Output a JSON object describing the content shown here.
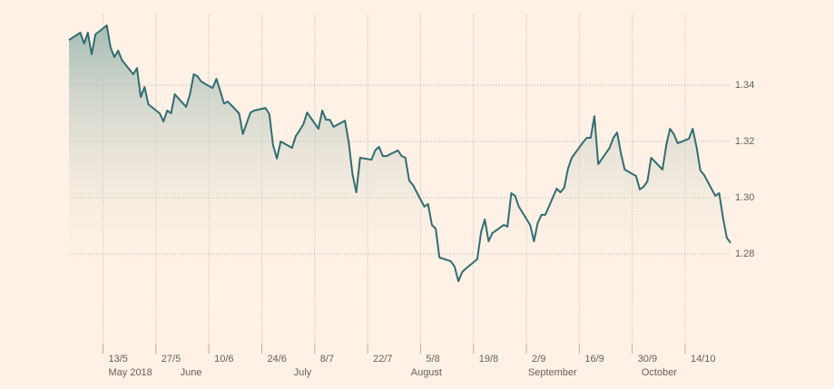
{
  "chart_data": {
    "type": "line",
    "x": [
      "2018-05-04",
      "2018-05-07",
      "2018-05-08",
      "2018-05-09",
      "2018-05-10",
      "2018-05-11",
      "2018-05-14",
      "2018-05-15",
      "2018-05-16",
      "2018-05-17",
      "2018-05-18",
      "2018-05-21",
      "2018-05-22",
      "2018-05-23",
      "2018-05-24",
      "2018-05-25",
      "2018-05-28",
      "2018-05-29",
      "2018-05-30",
      "2018-05-31",
      "2018-06-01",
      "2018-06-04",
      "2018-06-05",
      "2018-06-06",
      "2018-06-07",
      "2018-06-08",
      "2018-06-11",
      "2018-06-12",
      "2018-06-13",
      "2018-06-14",
      "2018-06-15",
      "2018-06-18",
      "2018-06-19",
      "2018-06-20",
      "2018-06-21",
      "2018-06-22",
      "2018-06-25",
      "2018-06-26",
      "2018-06-27",
      "2018-06-28",
      "2018-06-29",
      "2018-07-02",
      "2018-07-03",
      "2018-07-04",
      "2018-07-05",
      "2018-07-06",
      "2018-07-09",
      "2018-07-10",
      "2018-07-11",
      "2018-07-12",
      "2018-07-13",
      "2018-07-16",
      "2018-07-17",
      "2018-07-18",
      "2018-07-19",
      "2018-07-20",
      "2018-07-23",
      "2018-07-24",
      "2018-07-25",
      "2018-07-26",
      "2018-07-27",
      "2018-07-30",
      "2018-07-31",
      "2018-08-01",
      "2018-08-02",
      "2018-08-03",
      "2018-08-06",
      "2018-08-07",
      "2018-08-08",
      "2018-08-09",
      "2018-08-10",
      "2018-08-13",
      "2018-08-14",
      "2018-08-15",
      "2018-08-16",
      "2018-08-17",
      "2018-08-20",
      "2018-08-21",
      "2018-08-22",
      "2018-08-23",
      "2018-08-24",
      "2018-08-27",
      "2018-08-28",
      "2018-08-29",
      "2018-08-30",
      "2018-08-31",
      "2018-09-03",
      "2018-09-04",
      "2018-09-05",
      "2018-09-06",
      "2018-09-07",
      "2018-09-10",
      "2018-09-11",
      "2018-09-12",
      "2018-09-13",
      "2018-09-14",
      "2018-09-17",
      "2018-09-18",
      "2018-09-19",
      "2018-09-20",
      "2018-09-21",
      "2018-09-24",
      "2018-09-25",
      "2018-09-26",
      "2018-09-27",
      "2018-09-28",
      "2018-10-01",
      "2018-10-02",
      "2018-10-03",
      "2018-10-04",
      "2018-10-05",
      "2018-10-08",
      "2018-10-09",
      "2018-10-10",
      "2018-10-11",
      "2018-10-12",
      "2018-10-15",
      "2018-10-16",
      "2018-10-17",
      "2018-10-18",
      "2018-10-19",
      "2018-10-22",
      "2018-10-23",
      "2018-10-24",
      "2018-10-25",
      "2018-10-26"
    ],
    "values": [
      1.3561,
      1.3587,
      1.3548,
      1.3587,
      1.351,
      1.3581,
      1.3613,
      1.3535,
      1.35,
      1.3523,
      1.349,
      1.3439,
      1.3461,
      1.3358,
      1.3394,
      1.3332,
      1.33,
      1.3271,
      1.331,
      1.33,
      1.3368,
      1.3323,
      1.3368,
      1.3439,
      1.3432,
      1.3413,
      1.339,
      1.3423,
      1.3381,
      1.3335,
      1.3342,
      1.33,
      1.3226,
      1.3265,
      1.3303,
      1.331,
      1.3319,
      1.3297,
      1.3187,
      1.3139,
      1.32,
      1.3177,
      1.3219,
      1.3239,
      1.3261,
      1.3303,
      1.3245,
      1.331,
      1.3277,
      1.3277,
      1.3252,
      1.3274,
      1.3197,
      1.3084,
      1.3019,
      1.3142,
      1.3135,
      1.3168,
      1.3181,
      1.3148,
      1.3148,
      1.3168,
      1.3148,
      1.3142,
      1.3061,
      1.3045,
      1.2968,
      1.2977,
      1.2903,
      1.289,
      1.2787,
      1.2774,
      1.2755,
      1.2703,
      1.2735,
      1.2748,
      1.2781,
      1.2877,
      1.2923,
      1.2845,
      1.2874,
      1.2903,
      1.2897,
      1.3016,
      1.3006,
      1.2968,
      1.2903,
      1.2845,
      1.291,
      1.2939,
      1.2939,
      1.3032,
      1.3019,
      1.3035,
      1.3103,
      1.3142,
      1.3197,
      1.3213,
      1.3213,
      1.329,
      1.3119,
      1.3177,
      1.3213,
      1.3232,
      1.3158,
      1.31,
      1.3077,
      1.3029,
      1.3039,
      1.3058,
      1.3142,
      1.31,
      1.3187,
      1.3245,
      1.3226,
      1.3194,
      1.321,
      1.3245,
      1.3181,
      1.3097,
      1.3081,
      1.3006,
      1.3016,
      1.2929,
      1.2858,
      1.2839
    ],
    "color": "#2f6e73",
    "xlim": [
      "2018-05-04",
      "2018-10-26"
    ],
    "xticks": [
      {
        "value": "2018-05-13",
        "label": "13/5"
      },
      {
        "value": "2018-05-27",
        "label": "27/5"
      },
      {
        "value": "2018-06-10",
        "label": "10/6"
      },
      {
        "value": "2018-06-24",
        "label": "24/6"
      },
      {
        "value": "2018-07-08",
        "label": "8/7"
      },
      {
        "value": "2018-07-22",
        "label": "22/7"
      },
      {
        "value": "2018-08-05",
        "label": "5/8"
      },
      {
        "value": "2018-08-19",
        "label": "19/8"
      },
      {
        "value": "2018-09-02",
        "label": "2/9"
      },
      {
        "value": "2018-09-16",
        "label": "16/9"
      },
      {
        "value": "2018-09-30",
        "label": "30/9"
      },
      {
        "value": "2018-10-14",
        "label": "14/10"
      }
    ],
    "month_labels": [
      {
        "value": "2018-05-13",
        "label": "May 2018"
      },
      {
        "value": "2018-06-01",
        "label": "June"
      },
      {
        "value": "2018-07-01",
        "label": "July"
      },
      {
        "value": "2018-08-01",
        "label": "August"
      },
      {
        "value": "2018-09-01",
        "label": "September"
      },
      {
        "value": "2018-10-01",
        "label": "October"
      }
    ],
    "ylim": [
      1.25,
      1.365
    ],
    "yticks": [
      {
        "value": 1.28,
        "label": "1.28"
      },
      {
        "value": 1.3,
        "label": "1.30"
      },
      {
        "value": 1.32,
        "label": "1.32"
      },
      {
        "value": 1.34,
        "label": "1.34"
      }
    ],
    "grid": true
  }
}
